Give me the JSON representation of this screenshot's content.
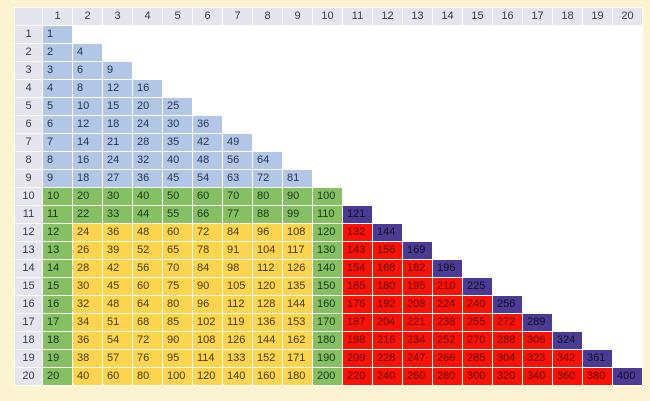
{
  "page": {
    "background": "#fbf3d2",
    "grid_background": "#ffffff",
    "header_bg": "#e5e5f0",
    "header_text": "#3c3c46"
  },
  "chart_data": {
    "type": "table",
    "title": "",
    "col_headers": [
      1,
      2,
      3,
      4,
      5,
      6,
      7,
      8,
      9,
      10,
      11,
      12,
      13,
      14,
      15,
      16,
      17,
      18,
      19,
      20
    ],
    "row_headers": [
      1,
      2,
      3,
      4,
      5,
      6,
      7,
      8,
      9,
      10,
      11,
      12,
      13,
      14,
      15,
      16,
      17,
      18,
      19,
      20
    ],
    "rows": [
      [
        1
      ],
      [
        2,
        4
      ],
      [
        3,
        6,
        9
      ],
      [
        4,
        8,
        12,
        16
      ],
      [
        5,
        10,
        15,
        20,
        25
      ],
      [
        6,
        12,
        18,
        24,
        30,
        36
      ],
      [
        7,
        14,
        21,
        28,
        35,
        42,
        49
      ],
      [
        8,
        16,
        24,
        32,
        40,
        48,
        56,
        64
      ],
      [
        9,
        18,
        27,
        36,
        45,
        54,
        63,
        72,
        81
      ],
      [
        10,
        20,
        30,
        40,
        50,
        60,
        70,
        80,
        90,
        100
      ],
      [
        11,
        22,
        33,
        44,
        55,
        66,
        77,
        88,
        99,
        110,
        121
      ],
      [
        12,
        24,
        36,
        48,
        60,
        72,
        84,
        96,
        108,
        120,
        132,
        144
      ],
      [
        13,
        26,
        39,
        52,
        65,
        78,
        91,
        104,
        117,
        130,
        143,
        156,
        169
      ],
      [
        14,
        28,
        42,
        56,
        70,
        84,
        98,
        112,
        126,
        140,
        154,
        168,
        182,
        196
      ],
      [
        15,
        30,
        45,
        60,
        75,
        90,
        105,
        120,
        135,
        150,
        165,
        180,
        195,
        210,
        225
      ],
      [
        16,
        32,
        48,
        64,
        80,
        96,
        112,
        128,
        144,
        160,
        176,
        192,
        208,
        224,
        240,
        256
      ],
      [
        17,
        34,
        51,
        68,
        85,
        102,
        119,
        136,
        153,
        170,
        187,
        204,
        221,
        238,
        255,
        272,
        289
      ],
      [
        18,
        36,
        54,
        72,
        90,
        108,
        126,
        144,
        162,
        180,
        198,
        216,
        234,
        252,
        270,
        288,
        306,
        324
      ],
      [
        19,
        38,
        57,
        76,
        95,
        114,
        133,
        152,
        171,
        190,
        209,
        228,
        247,
        266,
        285,
        304,
        323,
        342,
        361
      ],
      [
        20,
        40,
        60,
        80,
        100,
        120,
        140,
        160,
        180,
        200,
        220,
        240,
        260,
        280,
        300,
        320,
        340,
        360,
        380,
        400
      ]
    ],
    "cell_color_codes": [
      "b",
      "bb",
      "bbb",
      "bbbb",
      "bbbbb",
      "bbbbbb",
      "bbbbbbb",
      "bbbbbbbb",
      "bbbbbbbbb",
      "gggggggggg",
      "ggggggggggp",
      "gyyyyyyyygrp",
      "gyyyyyyyygrrp",
      "gyyyyyyyygrrrp",
      "gyyyyyyyygrrrrp",
      "gyyyyyyyygrrrrrp",
      "gyyyyyyyygrrrrrrp",
      "gyyyyyyyygrrrrrrrp",
      "gyyyyyyyygrrrrrrrrp",
      "gyyyyyyyygrrrrrrrrrp"
    ],
    "palette": {
      "b": {
        "bg": "#b2c6e7",
        "fg": "#26354d"
      },
      "g": {
        "bg": "#85c063",
        "fg": "#1e3318"
      },
      "y": {
        "bg": "#fdd44e",
        "fg": "#4a3a10"
      },
      "r": {
        "bg": "#fb1207",
        "fg": "#550d05"
      },
      "p": {
        "bg": "#4b3b94",
        "fg": "#11101f"
      }
    }
  }
}
